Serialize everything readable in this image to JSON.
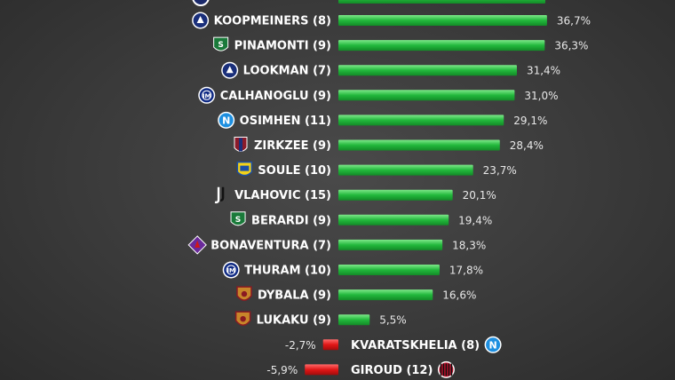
{
  "chart_data": {
    "type": "bar",
    "orientation": "horizontal",
    "categories": [
      "KOOPMEINERS (8)",
      "PINAMONTI (9)",
      "LOOKMAN (7)",
      "CALHANOGLU (9)",
      "OSIMHEN (11)",
      "ZIRKZEE (9)",
      "SOULE (10)",
      "VLAHOVIC (15)",
      "BERARDI (9)",
      "BONAVENTURA (7)",
      "THURAM (10)",
      "DYBALA (9)",
      "LUKAKU (9)",
      "KVARATSKHELIA (8)",
      "GIROUD (12)"
    ],
    "values": [
      36.7,
      36.3,
      31.4,
      31.0,
      29.1,
      28.4,
      23.7,
      20.1,
      19.4,
      18.3,
      17.8,
      16.6,
      5.5,
      -2.7,
      -5.9
    ],
    "value_labels": [
      "36,7%",
      "36,3%",
      "31,4%",
      "31,0%",
      "29,1%",
      "28,4%",
      "23,7%",
      "20,1%",
      "19,4%",
      "18,3%",
      "17,8%",
      "16,6%",
      "5,5%",
      "-2,7%",
      "-5,9%"
    ],
    "team_icons": [
      "atalanta-crest-icon",
      "sassuolo-crest-icon",
      "atalanta-crest-icon",
      "inter-crest-icon",
      "napoli-crest-icon",
      "bologna-crest-icon",
      "frosinone-crest-icon",
      "juventus-crest-icon",
      "sassuolo-crest-icon",
      "fiorentina-crest-icon",
      "inter-crest-icon",
      "roma-crest-icon",
      "roma-crest-icon",
      "napoli-crest-icon",
      "milan-crest-icon"
    ],
    "colors": {
      "positive": "#2bc44a",
      "negative": "#e01616"
    },
    "title": "",
    "xlabel": "",
    "ylabel": "",
    "grid": false
  }
}
